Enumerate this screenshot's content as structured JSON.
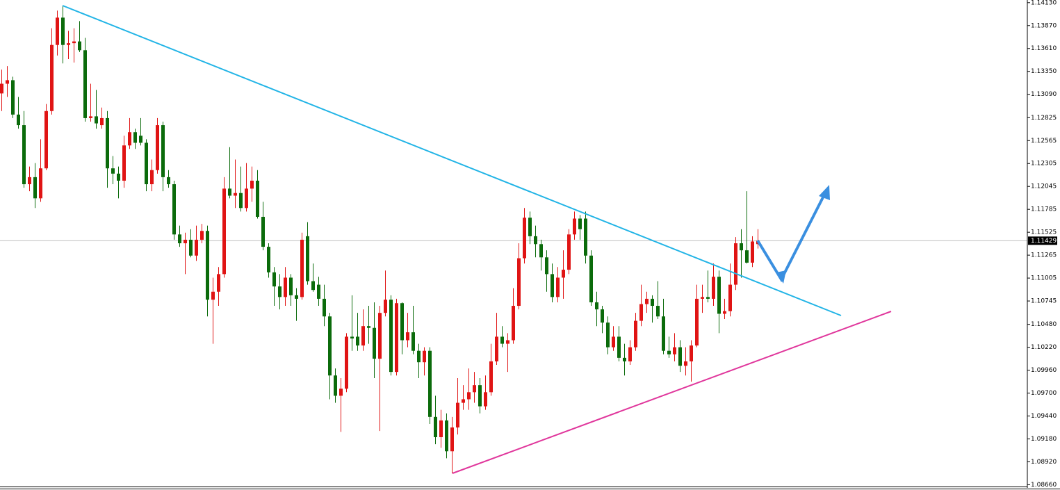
{
  "chart_data": {
    "type": "candlestick",
    "up_color": "#e01414",
    "down_color": "#0b6b0b",
    "open": [
      1.131,
      1.1321,
      1.1325,
      1.1286,
      1.1274,
      1.1207,
      1.1215,
      1.1191,
      1.1225,
      1.129,
      1.1365,
      1.1396,
      1.1365,
      1.1367,
      1.1369,
      1.1359,
      1.1282,
      1.1284,
      1.1274,
      1.1282,
      1.1225,
      1.1219,
      1.1211,
      1.1251,
      1.1266,
      1.1262,
      1.1254,
      1.1207,
      1.1223,
      1.1274,
      1.1215,
      1.1207,
      1.115,
      1.114,
      1.1144,
      1.1126,
      1.1144,
      1.1154,
      1.1076,
      1.1085,
      1.1105,
      1.1202,
      1.1194,
      1.1197,
      1.118,
      1.1202,
      1.1211,
      1.117,
      1.1136,
      1.1107,
      1.1091,
      1.1079,
      1.1101,
      1.1081,
      1.1079,
      1.1148,
      1.1097,
      1.1093,
      1.1077,
      1.1057,
      1.099,
      1.0967,
      1.0975,
      1.1034,
      1.1034,
      1.1024,
      1.1046,
      1.1044,
      1.1009,
      1.1061,
      1.1076,
      1.0994,
      1.1072,
      1.103,
      1.1039,
      1.1018,
      1.1005,
      1.1018,
      1.0943,
      1.092,
      1.0939,
      1.0904,
      1.0931,
      1.0959,
      1.0963,
      1.0971,
      1.0979,
      1.0955,
      1.0971,
      1.1006,
      1.1034,
      1.1026,
      1.103,
      1.1069,
      1.1123,
      1.1169,
      1.1148,
      1.1139,
      1.1124,
      1.1105,
      1.1079,
      1.1101,
      1.111,
      1.115,
      1.1168,
      1.1168,
      1.1126,
      1.1073,
      1.1065,
      1.105,
      1.1022,
      1.1034,
      1.101,
      1.1006,
      1.1022,
      1.1052,
      1.1071,
      1.1077,
      1.1069,
      1.1057,
      1.1018,
      1.1014,
      1.1022,
      1.1001,
      1.1006,
      1.1024,
      1.1077,
      1.1079,
      1.1077,
      1.1102,
      1.106,
      1.1063,
      1.1093,
      1.114,
      1.1132,
      1.1118,
      1.1139
    ],
    "high": [
      1.1337,
      1.1341,
      1.1329,
      1.1306,
      1.129,
      1.1227,
      1.1231,
      1.1258,
      1.1298,
      1.1384,
      1.1404,
      1.141,
      1.1381,
      1.1384,
      1.1392,
      1.1373,
      1.1321,
      1.1314,
      1.1294,
      1.129,
      1.1239,
      1.1227,
      1.1262,
      1.1282,
      1.127,
      1.1282,
      1.1258,
      1.1235,
      1.1282,
      1.1278,
      1.1223,
      1.1211,
      1.116,
      1.1152,
      1.1156,
      1.116,
      1.1162,
      1.116,
      1.1101,
      1.1113,
      1.1215,
      1.1249,
      1.1235,
      1.1227,
      1.1231,
      1.1227,
      1.1223,
      1.1187,
      1.114,
      1.1113,
      1.1105,
      1.1113,
      1.1105,
      1.1089,
      1.1152,
      1.1164,
      1.1117,
      1.1102,
      1.1093,
      1.1061,
      1.0998,
      1.0987,
      1.1038,
      1.1081,
      1.1061,
      1.1065,
      1.1069,
      1.1073,
      1.1069,
      1.1109,
      1.1081,
      1.1077,
      1.1073,
      1.1061,
      1.1069,
      1.1026,
      1.1022,
      1.1022,
      1.0967,
      1.0951,
      1.0947,
      1.0943,
      1.0987,
      1.0979,
      1.0998,
      1.0994,
      1.0987,
      1.099,
      1.1026,
      1.1061,
      1.1046,
      1.1038,
      1.1089,
      1.114,
      1.118,
      1.1176,
      1.116,
      1.1144,
      1.1132,
      1.1117,
      1.1113,
      1.1132,
      1.1156,
      1.1176,
      1.1172,
      1.1176,
      1.1132,
      1.1085,
      1.1069,
      1.1057,
      1.1046,
      1.1046,
      1.1026,
      1.103,
      1.1061,
      1.1093,
      1.1085,
      1.1081,
      1.1097,
      1.1077,
      1.1034,
      1.1038,
      1.103,
      1.1022,
      1.103,
      1.1093,
      1.1093,
      1.1109,
      1.1117,
      1.1109,
      1.1077,
      1.1117,
      1.1147,
      1.1156,
      1.1199,
      1.1148,
      1.1156
    ],
    "low": [
      1.129,
      1.1306,
      1.1282,
      1.127,
      1.1203,
      1.1199,
      1.118,
      1.1187,
      1.1223,
      1.1286,
      1.1353,
      1.1344,
      1.1349,
      1.1345,
      1.1357,
      1.1278,
      1.1278,
      1.127,
      1.127,
      1.1203,
      1.1207,
      1.1191,
      1.1203,
      1.1247,
      1.1247,
      1.1251,
      1.1199,
      1.1199,
      1.1219,
      1.1199,
      1.1203,
      1.1144,
      1.1136,
      1.1105,
      1.1124,
      1.112,
      1.114,
      1.1057,
      1.1026,
      1.1069,
      1.1101,
      1.1191,
      1.118,
      1.1176,
      1.1176,
      1.1187,
      1.1168,
      1.1132,
      1.1101,
      1.1069,
      1.1065,
      1.1069,
      1.1069,
      1.1052,
      1.1076,
      1.1093,
      1.1085,
      1.1069,
      1.1046,
      1.0963,
      1.0959,
      1.0926,
      1.0971,
      1.1018,
      1.1018,
      1.1018,
      1.1026,
      1.0987,
      1.0927,
      1.1057,
      1.099,
      1.099,
      1.1014,
      1.1022,
      1.1014,
      1.0987,
      1.099,
      1.0935,
      1.0912,
      1.0908,
      1.0896,
      1.0879,
      1.0923,
      1.0951,
      1.0951,
      1.0959,
      1.0947,
      1.0951,
      1.0967,
      1.1002,
      1.1022,
      1.0994,
      1.1026,
      1.1065,
      1.1117,
      1.1139,
      1.1124,
      1.1109,
      1.1085,
      1.1073,
      1.1073,
      1.1077,
      1.1105,
      1.1144,
      1.1144,
      1.1117,
      1.1069,
      1.1046,
      1.1038,
      1.1014,
      1.1018,
      1.1006,
      1.099,
      1.1002,
      1.1018,
      1.1046,
      1.1061,
      1.105,
      1.1054,
      1.1014,
      1.101,
      1.1006,
      1.0994,
      1.099,
      1.0983,
      1.1022,
      1.1061,
      1.1073,
      1.1069,
      1.1038,
      1.1054,
      1.1057,
      1.1087,
      1.1101,
      1.1117,
      1.1113,
      1.1134
    ],
    "close": [
      1.1321,
      1.1325,
      1.1286,
      1.1274,
      1.1207,
      1.1215,
      1.1191,
      1.1225,
      1.129,
      1.1365,
      1.1396,
      1.1365,
      1.1367,
      1.1369,
      1.1359,
      1.1282,
      1.1284,
      1.1276,
      1.1282,
      1.1225,
      1.1219,
      1.1211,
      1.1251,
      1.1266,
      1.1254,
      1.1254,
      1.1207,
      1.1223,
      1.1274,
      1.1215,
      1.1207,
      1.115,
      1.114,
      1.1144,
      1.1126,
      1.1144,
      1.1154,
      1.1076,
      1.1085,
      1.1105,
      1.1202,
      1.1194,
      1.1197,
      1.118,
      1.1202,
      1.1211,
      1.117,
      1.1136,
      1.1107,
      1.1091,
      1.1079,
      1.1101,
      1.1081,
      1.1077,
      1.1144,
      1.1097,
      1.1087,
      1.1077,
      1.1057,
      1.099,
      1.0967,
      1.0975,
      1.1034,
      1.1032,
      1.1024,
      1.1046,
      1.1044,
      1.1009,
      1.1061,
      1.1076,
      1.0994,
      1.1072,
      1.103,
      1.1039,
      1.1018,
      1.1005,
      1.1018,
      1.0943,
      1.092,
      1.0939,
      1.0904,
      1.0931,
      1.0959,
      1.0963,
      1.0971,
      1.0979,
      1.0955,
      1.0971,
      1.1006,
      1.1034,
      1.1026,
      1.103,
      1.1069,
      1.1123,
      1.1169,
      1.1148,
      1.1139,
      1.1124,
      1.1105,
      1.1079,
      1.1101,
      1.111,
      1.115,
      1.1168,
      1.1156,
      1.1126,
      1.1073,
      1.1065,
      1.105,
      1.1022,
      1.1034,
      1.101,
      1.1006,
      1.1022,
      1.1052,
      1.1071,
      1.1077,
      1.1069,
      1.1057,
      1.1018,
      1.1014,
      1.1022,
      1.1001,
      1.1006,
      1.1024,
      1.1077,
      1.1079,
      1.1077,
      1.1102,
      1.106,
      1.1063,
      1.1093,
      1.114,
      1.1132,
      1.1118,
      1.1142,
      1.11429
    ],
    "ylim": [
      1.0864,
      1.1416
    ],
    "yticks": [
      {
        "value": 1.1413,
        "label": "1.14130"
      },
      {
        "value": 1.1387,
        "label": "1.13870"
      },
      {
        "value": 1.1361,
        "label": "1.13610"
      },
      {
        "value": 1.1335,
        "label": "1.13350"
      },
      {
        "value": 1.1309,
        "label": "1.13090"
      },
      1.12825,
      1.12565,
      1.12305,
      1.12045,
      1.11785,
      1.11525,
      1.11265,
      1.11005,
      1.10745,
      {
        "value": 1.1048,
        "label": "1.10480"
      },
      {
        "value": 1.1022,
        "label": "1.10220"
      },
      {
        "value": 1.0996,
        "label": "1.09960"
      },
      {
        "value": 1.097,
        "label": "1.09700"
      },
      {
        "value": 1.0944,
        "label": "1.09440"
      },
      {
        "value": 1.0918,
        "label": "1.09180"
      },
      {
        "value": 1.0892,
        "label": "1.08920"
      },
      {
        "value": 1.0866,
        "label": "1.08660"
      }
    ],
    "current_price": {
      "value": 1.11429,
      "label": "1.11429"
    }
  }
}
